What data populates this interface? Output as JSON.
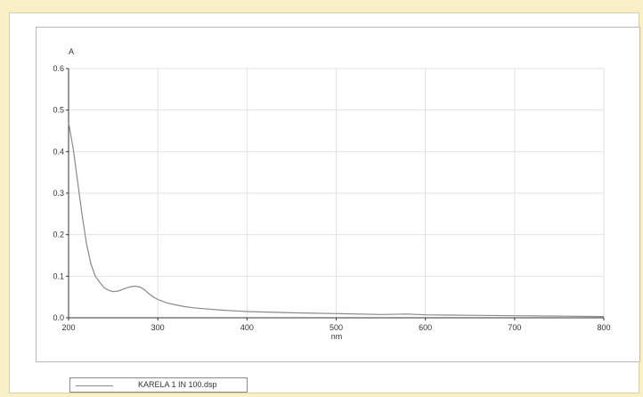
{
  "chart_data": {
    "type": "line",
    "xlabel": "nm",
    "ylabel": "A",
    "xlim": [
      200,
      800
    ],
    "ylim": [
      0,
      0.6
    ],
    "x_ticks": [
      200,
      300,
      400,
      500,
      600,
      700,
      800
    ],
    "y_ticks": [
      0.0,
      0.1,
      0.2,
      0.3,
      0.4,
      0.5,
      0.6
    ],
    "x_tick_labels": [
      "200",
      "300",
      "400",
      "500",
      "600",
      "700",
      "800"
    ],
    "y_tick_labels": [
      "0.0",
      "0.1",
      "0.2",
      "0.3",
      "0.4",
      "0.5",
      "0.6"
    ],
    "grid": true,
    "legend_position": "bottom-left",
    "series": [
      {
        "name": "KARELA 1 IN 100.dsp",
        "color": "#8a8a8a",
        "x": [
          200,
          205,
          210,
          215,
          220,
          225,
          230,
          235,
          240,
          245,
          250,
          255,
          260,
          265,
          270,
          275,
          280,
          285,
          290,
          295,
          300,
          310,
          320,
          330,
          340,
          350,
          375,
          400,
          450,
          500,
          550,
          580,
          600,
          650,
          700,
          750,
          800
        ],
        "y": [
          0.47,
          0.41,
          0.33,
          0.25,
          0.18,
          0.13,
          0.1,
          0.085,
          0.072,
          0.066,
          0.063,
          0.064,
          0.068,
          0.072,
          0.075,
          0.076,
          0.074,
          0.068,
          0.058,
          0.05,
          0.044,
          0.036,
          0.031,
          0.027,
          0.024,
          0.022,
          0.018,
          0.015,
          0.012,
          0.01,
          0.008,
          0.009,
          0.007,
          0.006,
          0.005,
          0.004,
          0.003
        ]
      }
    ]
  }
}
